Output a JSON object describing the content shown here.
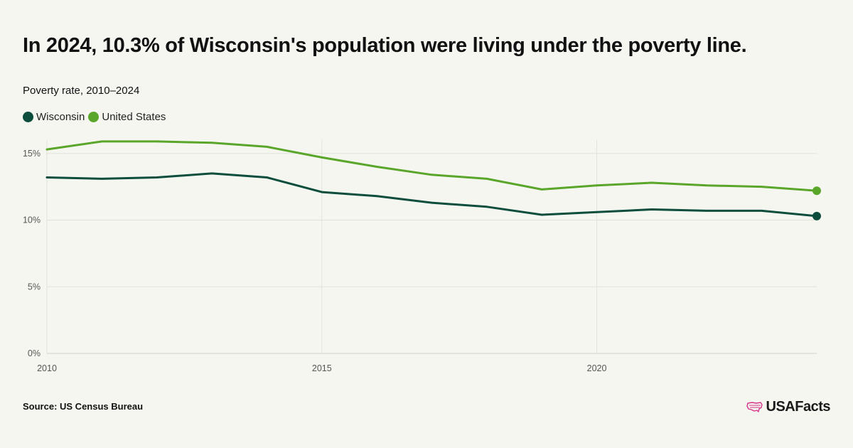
{
  "header": {
    "title": "In 2024, 10.3% of Wisconsin's population were living under the poverty line.",
    "subtitle": "Poverty rate, 2010–2024"
  },
  "legend": [
    {
      "name": "Wisconsin",
      "color": "#0d4d3c"
    },
    {
      "name": "United States",
      "color": "#5aa62a"
    }
  ],
  "footer": {
    "source": "Source: US Census Bureau",
    "logo": "USAFacts"
  },
  "chart_data": {
    "type": "line",
    "title": "In 2024, 10.3% of Wisconsin's population were living under the poverty line.",
    "subtitle": "Poverty rate, 2010–2024",
    "x": [
      2010,
      2011,
      2012,
      2013,
      2014,
      2015,
      2016,
      2017,
      2018,
      2019,
      2020,
      2021,
      2022,
      2023,
      2024
    ],
    "series": [
      {
        "name": "Wisconsin",
        "color": "#0d4d3c",
        "values": [
          13.2,
          13.1,
          13.2,
          13.5,
          13.2,
          12.1,
          11.8,
          11.3,
          11.0,
          10.4,
          10.6,
          10.8,
          10.7,
          10.7,
          10.3
        ]
      },
      {
        "name": "United States",
        "color": "#5aa62a",
        "values": [
          15.3,
          15.9,
          15.9,
          15.8,
          15.5,
          14.7,
          14.0,
          13.4,
          13.1,
          12.3,
          12.6,
          12.8,
          12.6,
          12.5,
          12.2
        ]
      }
    ],
    "xticks": [
      2010,
      2015,
      2020
    ],
    "yticks": [
      0,
      5,
      10,
      15
    ],
    "ytick_labels": [
      "0%",
      "5%",
      "10%",
      "15%"
    ],
    "xlim": [
      2010,
      2024
    ],
    "ylim": [
      0,
      16
    ],
    "grid": true,
    "legend_position": "top-left",
    "end_markers": true
  }
}
